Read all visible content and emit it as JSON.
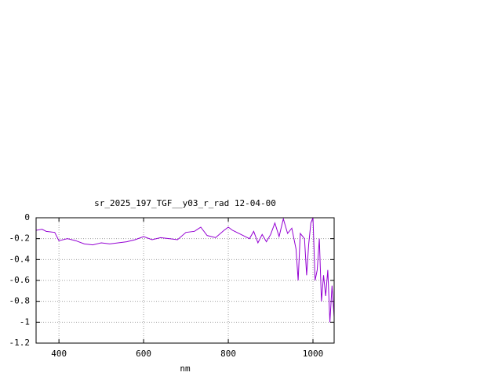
{
  "chart_data": {
    "type": "line",
    "title": "sr_2025_197_TGF__y03_r_rad 12-04-00",
    "x_label": "nm",
    "color": "#9400d3",
    "x": [
      346,
      360,
      370,
      390,
      400,
      420,
      440,
      460,
      480,
      500,
      520,
      540,
      560,
      580,
      600,
      620,
      640,
      660,
      680,
      700,
      720,
      735,
      750,
      770,
      790,
      800,
      810,
      830,
      850,
      860,
      870,
      880,
      890,
      900,
      910,
      920,
      930,
      940,
      950,
      960,
      965,
      970,
      980,
      985,
      990,
      995,
      1000,
      1005,
      1010,
      1015,
      1020,
      1025,
      1030,
      1035,
      1040,
      1045,
      1050
    ],
    "values": [
      -0.12,
      -0.11,
      -0.13,
      -0.14,
      -0.22,
      -0.2,
      -0.22,
      -0.25,
      -0.26,
      -0.24,
      -0.25,
      -0.24,
      -0.23,
      -0.21,
      -0.18,
      -0.21,
      -0.19,
      -0.2,
      -0.21,
      -0.14,
      -0.13,
      -0.09,
      -0.17,
      -0.19,
      -0.12,
      -0.09,
      -0.12,
      -0.16,
      -0.2,
      -0.13,
      -0.24,
      -0.16,
      -0.23,
      -0.16,
      -0.05,
      -0.18,
      -0.01,
      -0.15,
      -0.1,
      -0.3,
      -0.6,
      -0.15,
      -0.2,
      -0.55,
      -0.25,
      -0.05,
      0,
      -0.6,
      -0.5,
      -0.2,
      -0.8,
      -0.55,
      -0.75,
      -0.5,
      -1,
      -0.65,
      -0.95
    ],
    "xlim": [
      346,
      1050
    ],
    "xticks": [
      400,
      600,
      800,
      1000
    ],
    "ylim": [
      -1.2,
      0
    ],
    "yticks": [
      0,
      -0.2,
      -0.4,
      -0.6,
      -0.8,
      -1,
      -1.2
    ],
    "grid": true
  }
}
